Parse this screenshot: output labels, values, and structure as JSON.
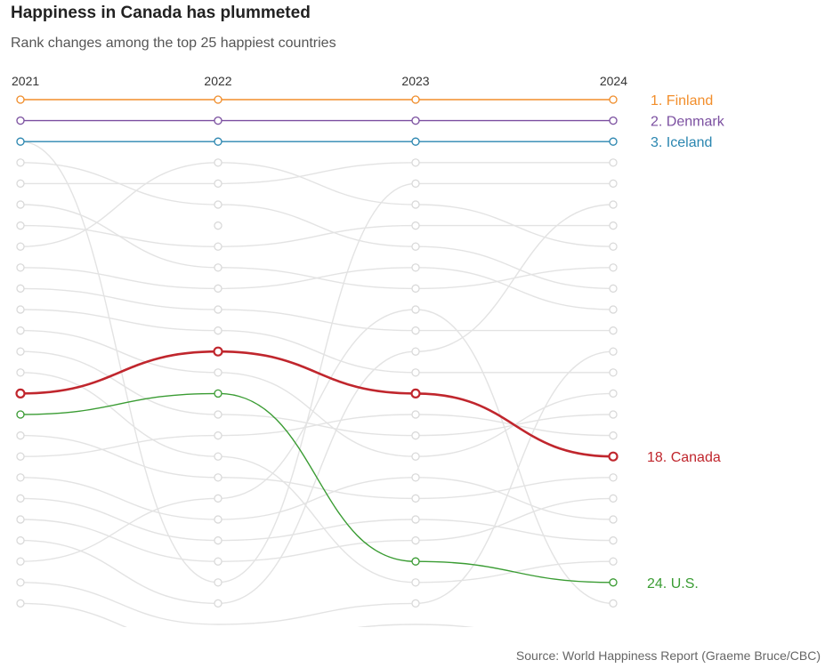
{
  "title": "Happiness in Canada has plummeted",
  "subtitle": "Rank changes among the top 25 happiest countries",
  "source": "Source: World Happiness Report (Graeme Bruce/CBC)",
  "colors": {
    "finland": "#f28e2b",
    "denmark": "#7b4fa0",
    "iceland": "#2a86b0",
    "canada": "#c0262d",
    "us": "#3a9c33",
    "background_line": "#e3e3e3",
    "background_marker": "#d9d9d9"
  },
  "chart_data": {
    "type": "line",
    "chart_kind": "bump",
    "x": [
      "2021",
      "2022",
      "2023",
      "2024"
    ],
    "y_axis": "rank",
    "y_reversed": true,
    "ylim": [
      1,
      25
    ],
    "grid": false,
    "highlighted_series": [
      {
        "key": "finland",
        "label": "1. Finland",
        "ranks": [
          1,
          1,
          1,
          1
        ]
      },
      {
        "key": "denmark",
        "label": "2. Denmark",
        "ranks": [
          2,
          2,
          2,
          2
        ]
      },
      {
        "key": "iceland",
        "label": "3. Iceland",
        "ranks": [
          3,
          3,
          3,
          3
        ]
      },
      {
        "key": "canada",
        "label": "18. Canada",
        "ranks": [
          15,
          13,
          15,
          18
        ]
      },
      {
        "key": "us",
        "label": "24. U.S.",
        "ranks": [
          16,
          15,
          23,
          24
        ]
      }
    ],
    "background_series": [
      [
        4,
        6,
        8,
        10
      ],
      [
        5,
        5,
        4,
        4
      ],
      [
        6,
        9,
        10,
        9
      ],
      [
        7,
        8,
        7,
        7
      ],
      [
        8,
        4,
        6,
        8
      ],
      [
        9,
        10,
        9,
        11
      ],
      [
        10,
        11,
        12,
        12
      ],
      [
        11,
        12,
        14,
        14
      ],
      [
        12,
        14,
        18,
        15
      ],
      [
        13,
        16,
        17,
        16
      ],
      [
        17,
        19,
        20,
        19
      ],
      [
        18,
        17,
        16,
        17
      ],
      [
        19,
        21,
        19,
        21
      ],
      [
        20,
        22,
        21,
        22
      ],
      [
        21,
        23,
        22,
        20
      ],
      [
        14,
        18,
        24,
        23
      ],
      [
        3,
        24,
        5,
        5
      ],
      [
        22,
        25,
        13,
        6
      ],
      [
        23,
        20,
        11,
        25
      ],
      [
        24,
        26,
        25,
        13
      ],
      [
        25,
        27,
        26,
        27
      ]
    ],
    "row_markers": {
      "2021": [
        1,
        2,
        3,
        4,
        5,
        6,
        7,
        8,
        9,
        10,
        11,
        12,
        13,
        14,
        15,
        16,
        17,
        18,
        19,
        20,
        21,
        22,
        23,
        24,
        25
      ],
      "2022": [
        1,
        2,
        3,
        4,
        5,
        6,
        7,
        8,
        9,
        10,
        11,
        12,
        13,
        14,
        15,
        16,
        17,
        18,
        19,
        20,
        21,
        22,
        23,
        24,
        25
      ],
      "2023": [
        1,
        2,
        3,
        4,
        5,
        6,
        7,
        8,
        9,
        10,
        11,
        12,
        13,
        14,
        15,
        16,
        17,
        18,
        19,
        20,
        21,
        22,
        23,
        24,
        25
      ],
      "2024": [
        1,
        2,
        3,
        4,
        5,
        6,
        7,
        8,
        9,
        10,
        11,
        12,
        13,
        14,
        15,
        16,
        17,
        18,
        19,
        20,
        21,
        22,
        23,
        24,
        25
      ]
    }
  }
}
